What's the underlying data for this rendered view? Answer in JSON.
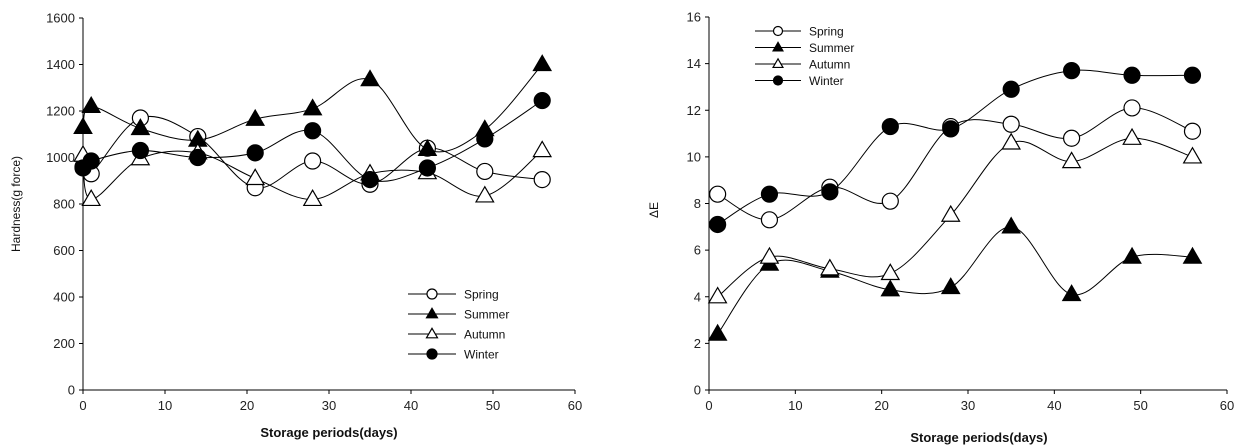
{
  "chart_data": [
    {
      "type": "line",
      "title": "",
      "xlabel": "Storage periods(days)",
      "ylabel": "Hardness(g force)",
      "xlim": [
        0,
        60
      ],
      "ylim": [
        0,
        1600
      ],
      "xticks": [
        "0",
        "10",
        "20",
        "30",
        "40",
        "50",
        "60"
      ],
      "yticks": [
        "0",
        "200",
        "400",
        "600",
        "800",
        "1000",
        "1200",
        "1400",
        "1600"
      ],
      "legend_position": "bottom-right",
      "grid": false,
      "series": [
        {
          "name": "Spring",
          "marker": "open-circle",
          "x": [
            0,
            1,
            7,
            14,
            21,
            28,
            35,
            42,
            49,
            56
          ],
          "values": [
            960,
            930,
            1170,
            1090,
            870,
            985,
            885,
            1040,
            940,
            905
          ]
        },
        {
          "name": "Summer",
          "marker": "filled-triangle",
          "x": [
            0,
            1,
            7,
            14,
            21,
            28,
            35,
            42,
            49,
            56
          ],
          "values": [
            1130,
            1220,
            1125,
            1075,
            1165,
            1210,
            1335,
            1035,
            1120,
            1400
          ]
        },
        {
          "name": "Autumn",
          "marker": "open-triangle",
          "x": [
            0,
            1,
            7,
            14,
            21,
            28,
            35,
            42,
            49,
            56
          ],
          "values": [
            1010,
            820,
            995,
            1020,
            910,
            820,
            930,
            935,
            835,
            1030
          ]
        },
        {
          "name": "Winter",
          "marker": "filled-circle",
          "x": [
            0,
            1,
            7,
            14,
            21,
            28,
            35,
            42,
            49,
            56
          ],
          "values": [
            955,
            985,
            1030,
            1000,
            1020,
            1115,
            905,
            955,
            1080,
            1245
          ]
        }
      ]
    },
    {
      "type": "line",
      "title": "",
      "xlabel": "Storage periods(days)",
      "ylabel": "ΔE",
      "xlim": [
        0,
        60
      ],
      "ylim": [
        0,
        16
      ],
      "xticks": [
        "0",
        "10",
        "20",
        "30",
        "40",
        "50",
        "60"
      ],
      "yticks": [
        "0",
        "2",
        "4",
        "6",
        "8",
        "10",
        "12",
        "14",
        "16"
      ],
      "legend_position": "top-left",
      "grid": false,
      "series": [
        {
          "name": "Spring",
          "marker": "open-circle",
          "x": [
            1,
            7,
            14,
            21,
            28,
            35,
            42,
            49,
            56
          ],
          "values": [
            8.4,
            7.3,
            8.7,
            8.1,
            11.3,
            11.4,
            10.8,
            12.1,
            11.1
          ]
        },
        {
          "name": "Summer",
          "marker": "filled-triangle",
          "x": [
            1,
            7,
            14,
            21,
            28,
            35,
            42,
            49,
            56
          ],
          "values": [
            2.4,
            5.4,
            5.1,
            4.3,
            4.4,
            7.0,
            4.1,
            5.7,
            5.7
          ]
        },
        {
          "name": "Autumn",
          "marker": "open-triangle",
          "x": [
            1,
            7,
            14,
            21,
            28,
            35,
            42,
            49,
            56
          ],
          "values": [
            4.0,
            5.7,
            5.2,
            5.0,
            7.5,
            10.6,
            9.8,
            10.8,
            10.0
          ]
        },
        {
          "name": "Winter",
          "marker": "filled-circle",
          "x": [
            1,
            7,
            14,
            21,
            28,
            35,
            42,
            49,
            56
          ],
          "values": [
            7.1,
            8.4,
            8.5,
            11.3,
            11.2,
            12.9,
            13.7,
            13.5,
            13.5
          ]
        }
      ]
    }
  ]
}
